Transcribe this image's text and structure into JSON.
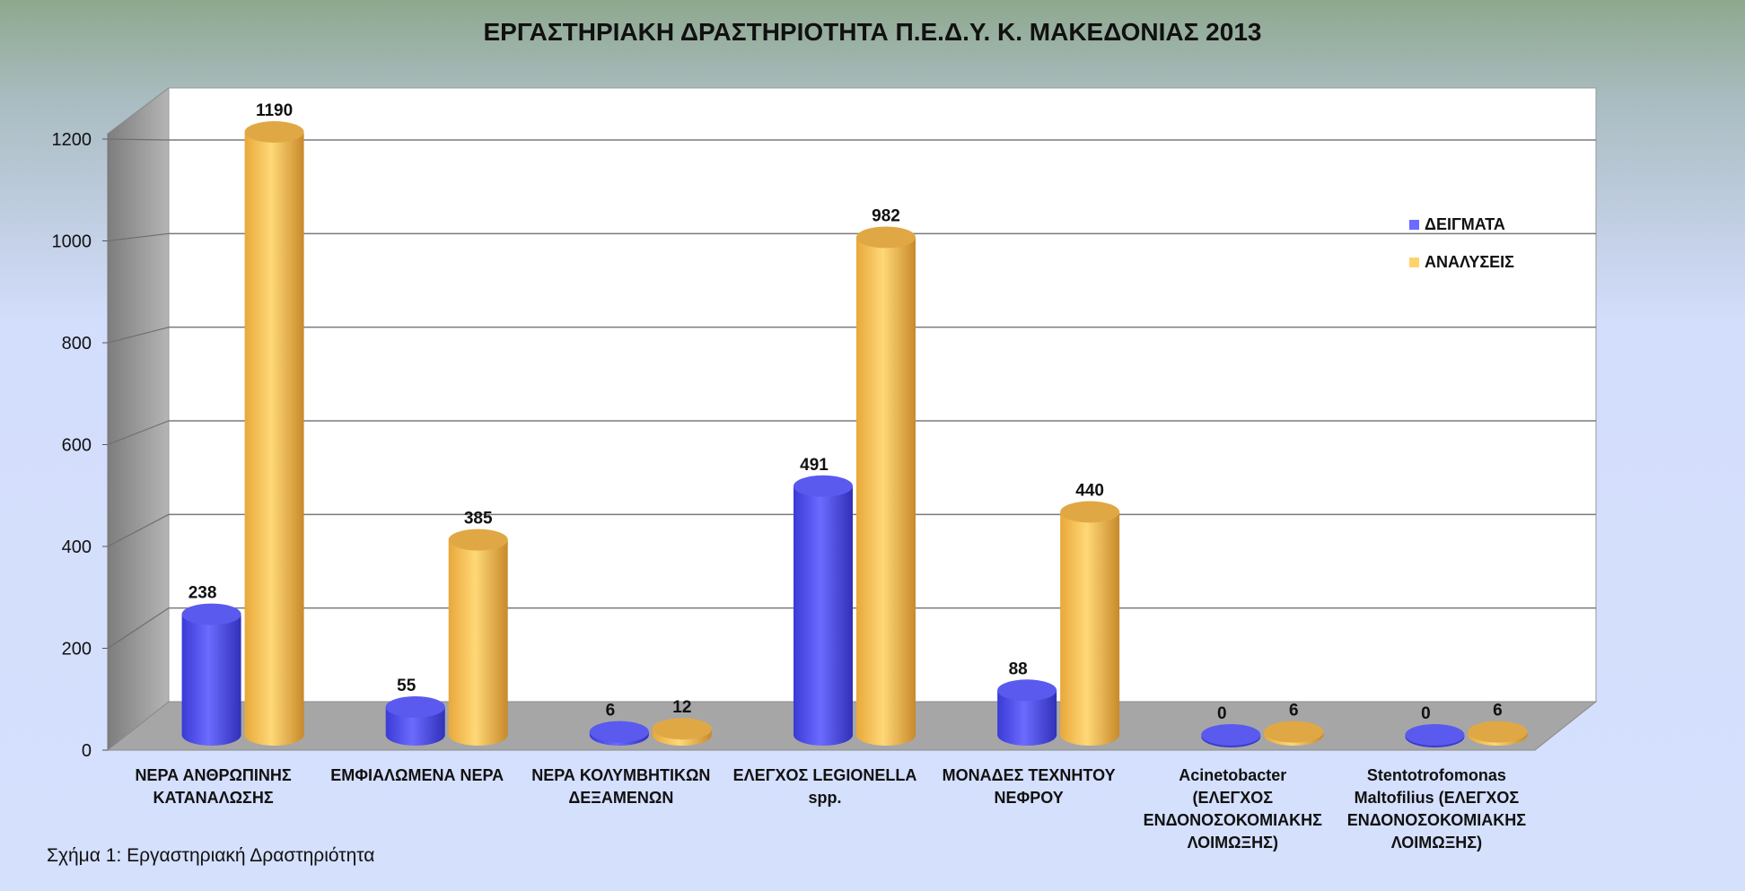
{
  "figure_caption": "Σχήμα 1:  Εργαστηριακή Δραστηριότητα",
  "colors": {
    "samples": "#6b6bff",
    "analyses": "#ffd36b",
    "floor": "#a6a6a6",
    "back_wall": "#ffffff"
  },
  "chart_data": {
    "type": "bar",
    "title": "ΕΡΓΑΣΤΗΡΙΑΚΗ ΔΡΑΣΤΗΡΙΟΤΗΤΑ Π.Ε.Δ.Υ. Κ. ΜΑΚΕΔΟΝΙΑΣ 2013",
    "categories": [
      "ΝΕΡΑ ΑΝΘΡΩΠΙΝΗΣ\nΚΑΤΑΝΑΛΩΣΗΣ",
      "ΕΜΦΙΑΛΩΜΕΝΑ ΝΕΡΑ",
      "ΝΕΡΑ ΚΟΛΥΜΒΗΤΙΚΩΝ\nΔΕΞΑΜΕΝΩΝ",
      "ΕΛΕΓΧΟΣ LEGIONELLA\nspp.",
      "ΜΟΝΑΔΕΣ ΤΕΧΝΗΤΟΥ\nΝΕΦΡΟΥ",
      "Acinetobacter\n(ΕΛΕΓΧΟΣ\nΕΝΔΟΝΟΣΟΚΟΜΙΑΚΗΣ\nΛΟΙΜΩΞΗΣ)",
      "Stentotrofomonas\nMaltofilius (ΕΛΕΓΧΟΣ\nΕΝΔΟΝΟΣΟΚΟΜΙΑΚΗΣ\nΛΟΙΜΩΞΗΣ)"
    ],
    "series": [
      {
        "name": "ΔΕΙΓΜΑΤΑ",
        "values": [
          238,
          55,
          6,
          491,
          88,
          0,
          0
        ]
      },
      {
        "name": "ΑΝΑΛΥΣΕΙΣ",
        "values": [
          1190,
          385,
          12,
          982,
          440,
          6,
          6
        ]
      }
    ],
    "y_ticks": [
      "0",
      "200",
      "400",
      "600",
      "800",
      "1000",
      "1200"
    ],
    "ylim": [
      0,
      1200
    ],
    "grid": true,
    "legend_position": "right",
    "style": "3d-cylinder"
  }
}
